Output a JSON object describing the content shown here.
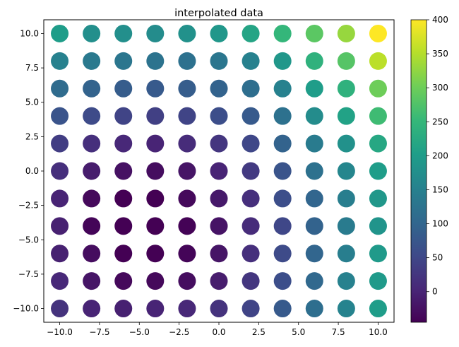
{
  "chart_data": {
    "type": "scatter",
    "title": "interpolated data",
    "xlabel": "",
    "ylabel": "",
    "xlim": [
      -11,
      11
    ],
    "ylim": [
      -11,
      11
    ],
    "x_ticks": [
      -10,
      -7.5,
      -5,
      -2.5,
      0,
      2.5,
      5,
      7.5,
      10
    ],
    "x_tick_labels": [
      "−10.0",
      "−7.5",
      "−5.0",
      "−2.5",
      "0.0",
      "2.5",
      "5.0",
      "7.5",
      "10.0"
    ],
    "y_ticks": [
      -10,
      -7.5,
      -5,
      -2.5,
      0,
      2.5,
      5,
      7.5,
      10
    ],
    "y_tick_labels": [
      "−10.0",
      "−7.5",
      "−5.0",
      "−2.5",
      "0.0",
      "2.5",
      "5.0",
      "7.5",
      "10.0"
    ],
    "grid": false,
    "x": [
      -10,
      -8,
      -6,
      -4,
      -2,
      0,
      2,
      4,
      6,
      8,
      10
    ],
    "y": [
      10,
      8,
      6,
      4,
      2,
      0,
      -2,
      -4,
      -6,
      -8,
      -10
    ],
    "values": [
      [
        200,
        175,
        175,
        170,
        180,
        190,
        215,
        250,
        285,
        330,
        400
      ],
      [
        150,
        135,
        130,
        125,
        120,
        130,
        150,
        190,
        240,
        280,
        355
      ],
      [
        110,
        95,
        85,
        80,
        85,
        95,
        115,
        150,
        200,
        240,
        300
      ],
      [
        70,
        55,
        45,
        40,
        45,
        60,
        80,
        120,
        170,
        210,
        260
      ],
      [
        35,
        15,
        5,
        0,
        10,
        25,
        50,
        95,
        140,
        180,
        220
      ],
      [
        15,
        -10,
        -25,
        -30,
        -20,
        0,
        30,
        70,
        120,
        160,
        200
      ],
      [
        0,
        -35,
        -45,
        -45,
        -35,
        -15,
        15,
        60,
        100,
        145,
        190
      ],
      [
        -5,
        -40,
        -48,
        -48,
        -42,
        -22,
        10,
        50,
        95,
        140,
        185
      ],
      [
        -5,
        -30,
        -45,
        -48,
        -40,
        -20,
        15,
        55,
        100,
        145,
        195
      ],
      [
        5,
        -20,
        -35,
        -35,
        -30,
        -10,
        25,
        60,
        105,
        150,
        195
      ],
      [
        20,
        0,
        -5,
        0,
        5,
        20,
        45,
        80,
        115,
        155,
        200
      ]
    ],
    "colorbar": {
      "min": -45,
      "max": 400,
      "ticks": [
        0,
        50,
        100,
        150,
        200,
        250,
        300,
        350,
        400
      ],
      "tick_labels": [
        "0",
        "50",
        "100",
        "150",
        "200",
        "250",
        "300",
        "350",
        "400"
      ],
      "colormap": "viridis",
      "colormap_stops": [
        "#440154",
        "#482878",
        "#3e4a89",
        "#31688e",
        "#26828e",
        "#1f9e89",
        "#35b779",
        "#6ece58",
        "#b5de2b",
        "#fde725"
      ]
    }
  }
}
